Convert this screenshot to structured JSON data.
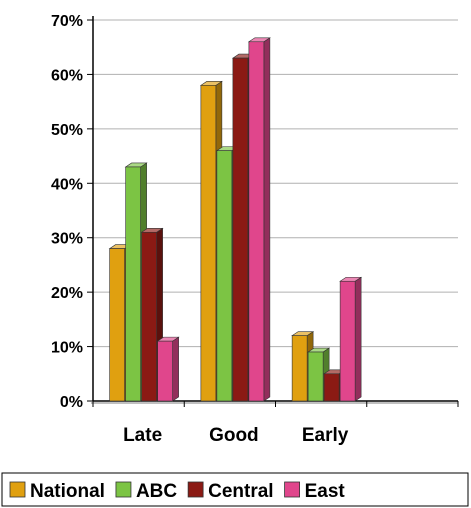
{
  "chart_data": {
    "type": "bar",
    "categories": [
      "Late",
      "Good",
      "Early",
      ""
    ],
    "series": [
      {
        "name": "National",
        "color": "#e0a010",
        "values": [
          28,
          58,
          12,
          null
        ]
      },
      {
        "name": "ABC",
        "color": "#7cc444",
        "values": [
          43,
          46,
          9,
          null
        ]
      },
      {
        "name": "Central",
        "color": "#8b1a14",
        "values": [
          31,
          63,
          5,
          null
        ]
      },
      {
        "name": "East",
        "color": "#e0468c",
        "values": [
          11,
          66,
          22,
          null
        ]
      }
    ],
    "y_ticks": [
      "0%",
      "10%",
      "20%",
      "30%",
      "40%",
      "50%",
      "60%",
      "70%"
    ],
    "ylim": [
      0,
      70
    ],
    "grid": true,
    "legend_position": "bottom"
  }
}
